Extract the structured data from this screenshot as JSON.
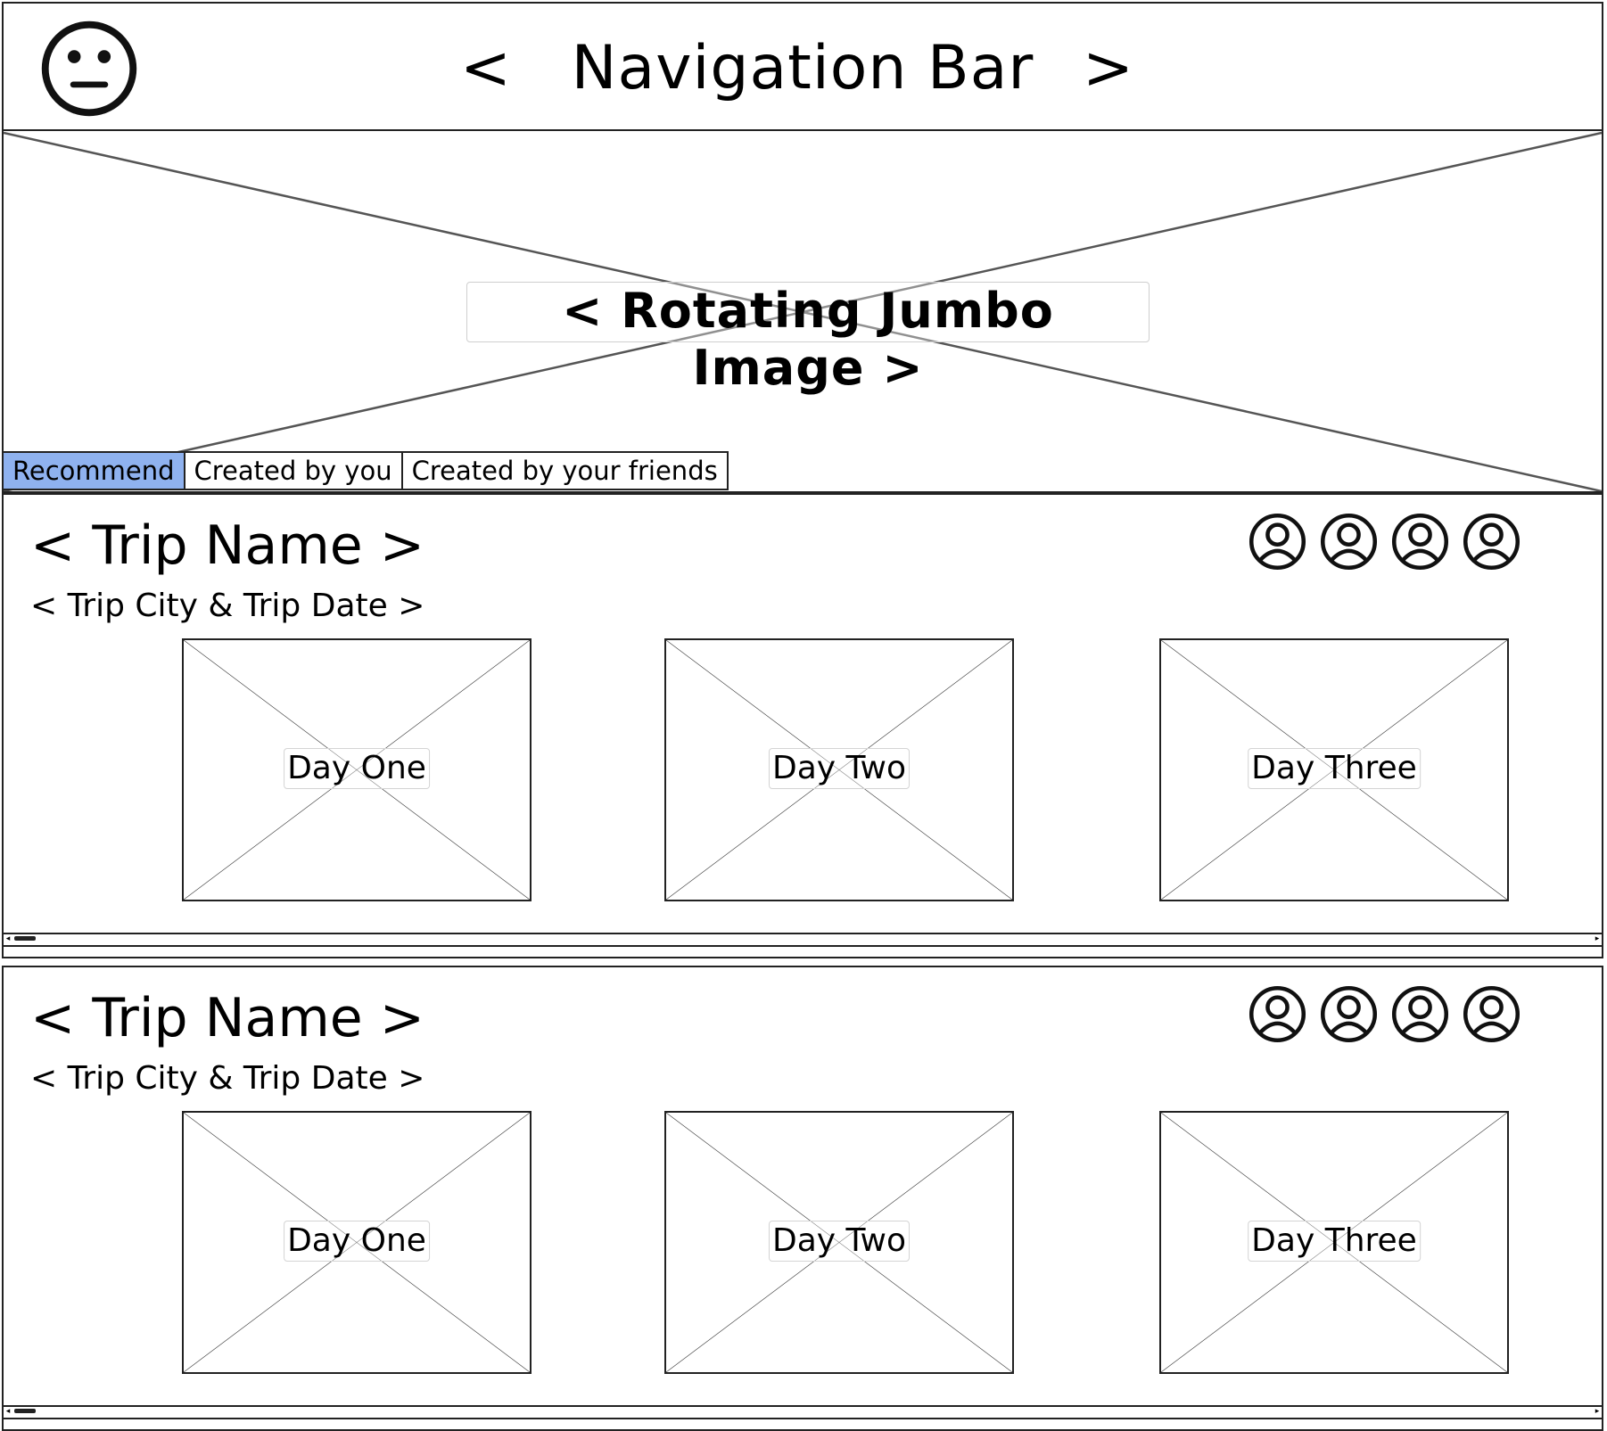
{
  "nav": {
    "logo_icon": "neutral-face-icon",
    "prev": "<",
    "title": "Navigation Bar",
    "next": ">"
  },
  "jumbo": {
    "label": "< Rotating Jumbo Image >"
  },
  "tabs": [
    {
      "label": "Recommend",
      "active": true
    },
    {
      "label": "Created by you",
      "active": false
    },
    {
      "label": "Created by your friends",
      "active": false
    }
  ],
  "accent_color": "#8fb2ef",
  "trips": [
    {
      "name": "< Trip Name >",
      "meta": "< Trip City & Trip Date >",
      "avatar_icon": "user-avatar-icon",
      "days": [
        "Day One",
        "Day Two",
        "Day Three"
      ]
    },
    {
      "name": "< Trip Name >",
      "meta": "< Trip City & Trip Date >",
      "avatar_icon": "user-avatar-icon",
      "days": [
        "Day One",
        "Day Two",
        "Day Three"
      ]
    }
  ]
}
